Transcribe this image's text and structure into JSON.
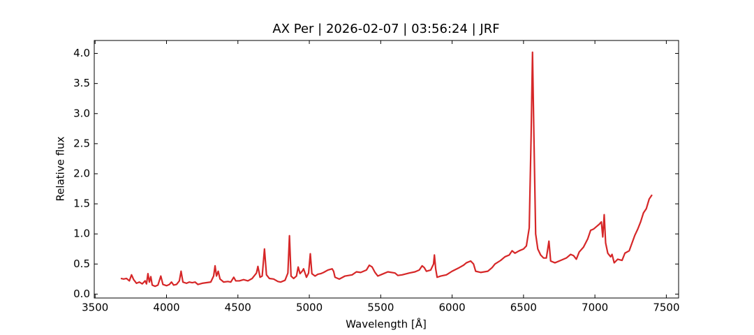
{
  "chart_data": {
    "type": "line",
    "title": "AX Per | 2026-02-07 | 03:56:24 | JRF",
    "x_label": "Wavelength [Å]",
    "y_label": "Relative flux",
    "color": "#d62728",
    "xlim": [
      3494,
      7586
    ],
    "ylim": [
      -0.065,
      4.215
    ],
    "xticks": [
      3500,
      4000,
      4500,
      5000,
      5500,
      6000,
      6500,
      7000,
      7500
    ],
    "yticks": [
      {
        "value": 0,
        "label": "0.0"
      },
      0.5,
      {
        "value": 1,
        "label": "1.0"
      },
      1.5,
      {
        "value": 2,
        "label": "2.0"
      },
      2.5,
      {
        "value": 3,
        "label": "3.0"
      },
      3.5,
      {
        "value": 4,
        "label": "4.0"
      }
    ],
    "ticks_inward": true,
    "x": [
      3680,
      3700,
      3720,
      3740,
      3755,
      3770,
      3790,
      3810,
      3830,
      3850,
      3860,
      3870,
      3880,
      3890,
      3900,
      3920,
      3940,
      3960,
      3975,
      4000,
      4020,
      4035,
      4050,
      4070,
      4090,
      4102,
      4115,
      4140,
      4160,
      4180,
      4200,
      4220,
      4250,
      4280,
      4310,
      4330,
      4340,
      4350,
      4362,
      4375,
      4400,
      4430,
      4450,
      4471,
      4485,
      4510,
      4540,
      4570,
      4600,
      4630,
      4640,
      4655,
      4670,
      4686,
      4700,
      4720,
      4750,
      4780,
      4800,
      4830,
      4850,
      4861,
      4872,
      4890,
      4910,
      4922,
      4935,
      4950,
      4960,
      4980,
      4995,
      5007,
      5018,
      5040,
      5060,
      5080,
      5100,
      5130,
      5160,
      5170,
      5180,
      5210,
      5250,
      5300,
      5330,
      5360,
      5400,
      5420,
      5440,
      5460,
      5480,
      5510,
      5550,
      5600,
      5620,
      5650,
      5700,
      5740,
      5770,
      5790,
      5805,
      5820,
      5850,
      5870,
      5876,
      5885,
      5895,
      5920,
      5960,
      6000,
      6050,
      6080,
      6100,
      6130,
      6150,
      6165,
      6200,
      6250,
      6280,
      6300,
      6340,
      6370,
      6400,
      6420,
      6440,
      6470,
      6500,
      6520,
      6540,
      6553,
      6563,
      6573,
      6585,
      6600,
      6620,
      6640,
      6660,
      6678,
      6690,
      6720,
      6760,
      6800,
      6830,
      6850,
      6870,
      6890,
      6920,
      6950,
      6970,
      6990,
      7010,
      7030,
      7045,
      7055,
      7065,
      7075,
      7090,
      7110,
      7120,
      7135,
      7160,
      7190,
      7210,
      7240,
      7260,
      7280,
      7300,
      7320,
      7340,
      7360,
      7380,
      7400
    ],
    "values": [
      0.26,
      0.25,
      0.26,
      0.22,
      0.32,
      0.24,
      0.18,
      0.2,
      0.17,
      0.22,
      0.17,
      0.34,
      0.2,
      0.29,
      0.15,
      0.13,
      0.15,
      0.3,
      0.16,
      0.14,
      0.16,
      0.2,
      0.15,
      0.16,
      0.22,
      0.38,
      0.2,
      0.18,
      0.2,
      0.19,
      0.2,
      0.16,
      0.18,
      0.19,
      0.2,
      0.3,
      0.47,
      0.3,
      0.38,
      0.25,
      0.2,
      0.21,
      0.2,
      0.28,
      0.22,
      0.22,
      0.24,
      0.22,
      0.26,
      0.35,
      0.46,
      0.28,
      0.3,
      0.75,
      0.32,
      0.26,
      0.25,
      0.21,
      0.2,
      0.23,
      0.35,
      0.97,
      0.3,
      0.26,
      0.3,
      0.45,
      0.34,
      0.38,
      0.42,
      0.28,
      0.35,
      0.67,
      0.34,
      0.3,
      0.33,
      0.34,
      0.36,
      0.4,
      0.42,
      0.38,
      0.28,
      0.25,
      0.3,
      0.32,
      0.37,
      0.36,
      0.4,
      0.48,
      0.45,
      0.36,
      0.3,
      0.33,
      0.37,
      0.35,
      0.31,
      0.32,
      0.35,
      0.37,
      0.4,
      0.47,
      0.44,
      0.38,
      0.4,
      0.5,
      0.65,
      0.42,
      0.28,
      0.3,
      0.32,
      0.38,
      0.44,
      0.48,
      0.52,
      0.55,
      0.5,
      0.38,
      0.36,
      0.38,
      0.44,
      0.5,
      0.56,
      0.62,
      0.65,
      0.72,
      0.68,
      0.72,
      0.75,
      0.8,
      1.1,
      2.6,
      4.02,
      2.6,
      1.0,
      0.75,
      0.65,
      0.6,
      0.6,
      0.88,
      0.55,
      0.52,
      0.56,
      0.6,
      0.66,
      0.64,
      0.58,
      0.7,
      0.78,
      0.92,
      1.06,
      1.08,
      1.12,
      1.16,
      1.2,
      0.95,
      1.32,
      0.85,
      0.68,
      0.62,
      0.66,
      0.52,
      0.58,
      0.56,
      0.68,
      0.72,
      0.85,
      0.98,
      1.08,
      1.2,
      1.35,
      1.42,
      1.58,
      1.65
    ]
  }
}
